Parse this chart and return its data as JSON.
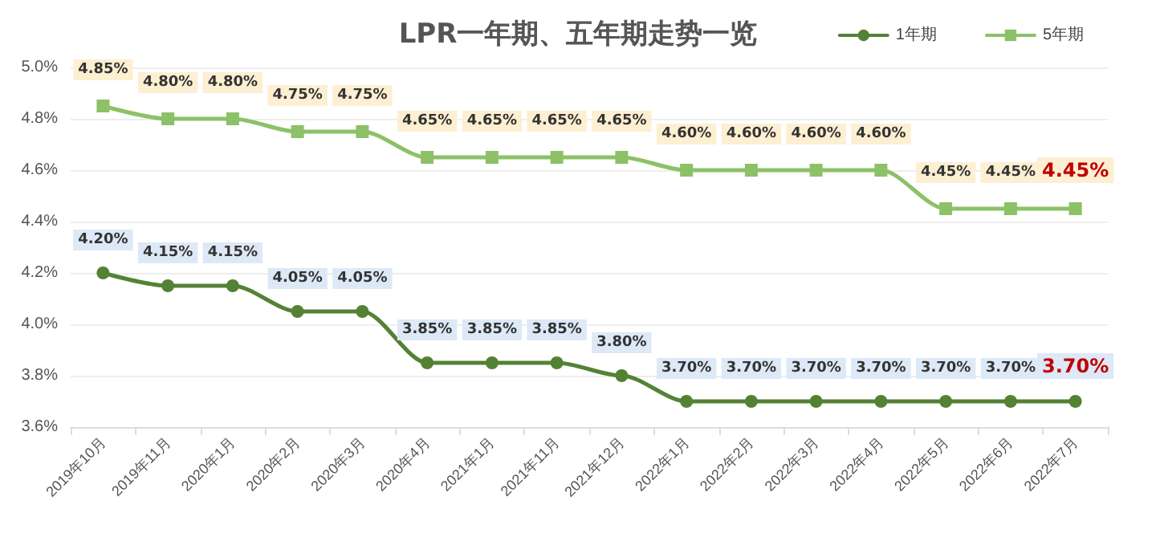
{
  "chart_data": {
    "type": "line",
    "title": "LPR一年期、五年期走势一览",
    "categories": [
      "2019年10月",
      "2019年11月",
      "2020年1月",
      "2020年2月",
      "2020年3月",
      "2020年4月",
      "2021年1月",
      "2021年11月",
      "2021年12月",
      "2022年1月",
      "2022年2月",
      "2022年3月",
      "2022年4月",
      "2022年5月",
      "2022年6月",
      "2022年7月"
    ],
    "series": [
      {
        "name": "1年期",
        "color": "#548235",
        "marker": "circle",
        "values": [
          4.2,
          4.15,
          4.15,
          4.05,
          4.05,
          3.85,
          3.85,
          3.85,
          3.8,
          3.7,
          3.7,
          3.7,
          3.7,
          3.7,
          3.7,
          3.7
        ],
        "value_labels": [
          "4.20%",
          "4.15%",
          "4.15%",
          "4.05%",
          "4.05%",
          "3.85%",
          "3.85%",
          "3.85%",
          "3.80%",
          "3.70%",
          "3.70%",
          "3.70%",
          "3.70%",
          "3.70%",
          "3.70%",
          "3.70%"
        ]
      },
      {
        "name": "5年期",
        "color": "#8cc168",
        "marker": "square",
        "values": [
          4.85,
          4.8,
          4.8,
          4.75,
          4.75,
          4.65,
          4.65,
          4.65,
          4.65,
          4.6,
          4.6,
          4.6,
          4.6,
          4.45,
          4.45,
          4.45
        ],
        "value_labels": [
          "4.85%",
          "4.80%",
          "4.80%",
          "4.75%",
          "4.75%",
          "4.65%",
          "4.65%",
          "4.65%",
          "4.65%",
          "4.60%",
          "4.60%",
          "4.60%",
          "4.60%",
          "4.45%",
          "4.45%",
          "4.45%"
        ]
      }
    ],
    "ylim": [
      3.6,
      5.0
    ],
    "yticks": [
      {
        "value": 3.6,
        "label": "3.6%"
      },
      {
        "value": 3.8,
        "label": "3.8%"
      },
      {
        "value": 4.0,
        "label": "4.0%"
      },
      {
        "value": 4.2,
        "label": "4.2%"
      },
      {
        "value": 4.4,
        "label": "4.4%"
      },
      {
        "value": 4.6,
        "label": "4.6%"
      },
      {
        "value": 4.8,
        "label": "4.8%"
      },
      {
        "value": 5.0,
        "label": "5.0%"
      }
    ],
    "grid": "y",
    "legend": "top right"
  }
}
